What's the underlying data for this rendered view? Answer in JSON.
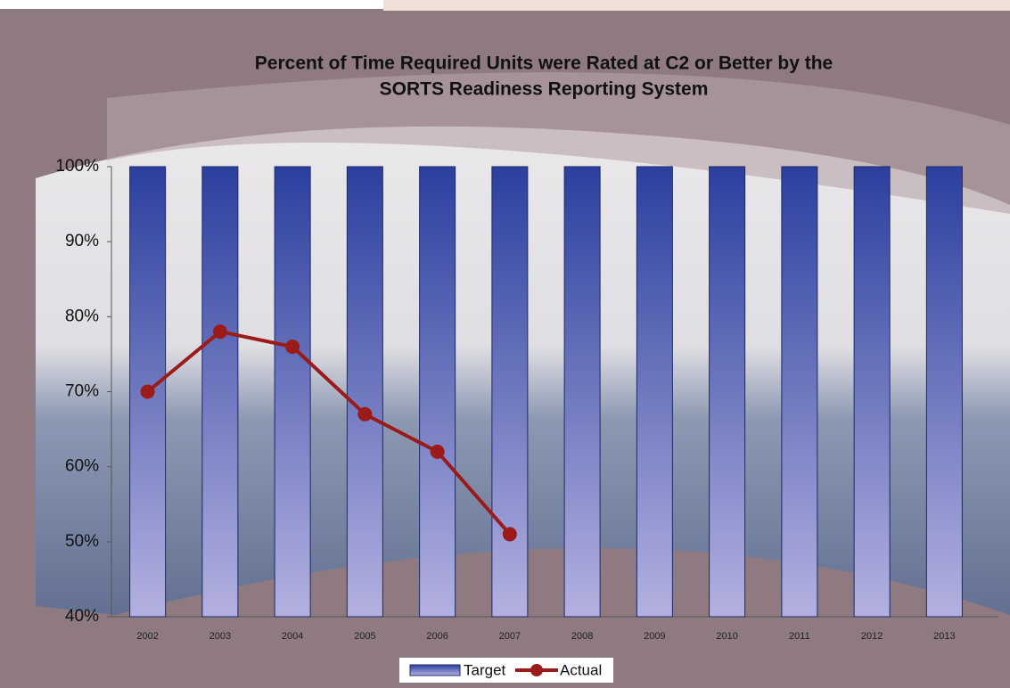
{
  "chart_data": {
    "type": "bar",
    "title": [
      "Percent of Time Required Units were Rated at C2 or Better by the",
      "SORTS Readiness Reporting System"
    ],
    "categories": [
      "2002",
      "2003",
      "2004",
      "2005",
      "2006",
      "2007",
      "2008",
      "2009",
      "2010",
      "2011",
      "2012",
      "2013"
    ],
    "series": [
      {
        "name": "Target",
        "type": "bar",
        "color": "#2b3f9e",
        "values": [
          100,
          100,
          100,
          100,
          100,
          100,
          100,
          100,
          100,
          100,
          100,
          100
        ]
      },
      {
        "name": "Actual",
        "type": "line",
        "color": "#9b1a1a",
        "values": [
          70,
          78,
          76,
          67,
          62,
          51,
          null,
          null,
          null,
          null,
          null,
          null
        ]
      }
    ],
    "ylim": [
      40,
      100
    ],
    "yticks": [
      {
        "value": 40,
        "label": "40%"
      },
      {
        "value": 50,
        "label": "50%"
      },
      {
        "value": 60,
        "label": "60%"
      },
      {
        "value": 70,
        "label": "70%"
      },
      {
        "value": 80,
        "label": "80%"
      },
      {
        "value": 90,
        "label": "90%"
      },
      {
        "value": 100,
        "label": "100%"
      }
    ],
    "legend": "bottom"
  }
}
